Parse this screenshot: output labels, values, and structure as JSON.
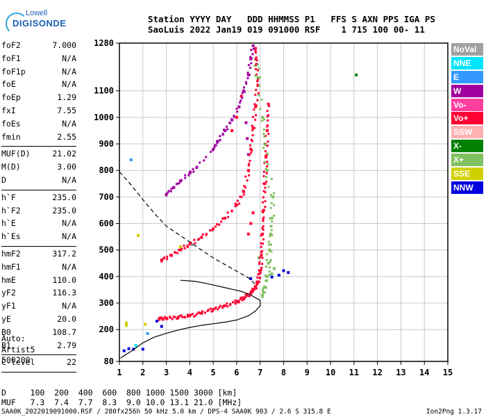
{
  "logo": {
    "sub": "Lowell",
    "main": "DIGISONDE"
  },
  "header": {
    "line1": "Station YYYY DAY   DDD HHMMSS P1   FFS S AXN PPS IGA PS",
    "line2": "SaoLuis 2022 Jan19 019 091000 RSF    1 715 100 00- 11"
  },
  "params": {
    "group1": [
      {
        "label": "foF2",
        "value": "7.000"
      },
      {
        "label": "foF1",
        "value": "N/A"
      },
      {
        "label": "foF1p",
        "value": "N/A"
      },
      {
        "label": "foE",
        "value": "N/A"
      },
      {
        "label": "foEp",
        "value": "1.29"
      },
      {
        "label": "fxI",
        "value": "7.55"
      },
      {
        "label": "foEs",
        "value": "N/A"
      },
      {
        "label": "fmin",
        "value": "2.55"
      }
    ],
    "group2": [
      {
        "label": "MUF(D)",
        "value": "21.02"
      },
      {
        "label": "M(D)",
        "value": "3.00"
      },
      {
        "label": "D",
        "value": "N/A"
      }
    ],
    "group3": [
      {
        "label": "h`F",
        "value": "235.0"
      },
      {
        "label": "h`F2",
        "value": "235.0"
      },
      {
        "label": "h`E",
        "value": "N/A"
      },
      {
        "label": "h`Es",
        "value": "N/A"
      }
    ],
    "group4": [
      {
        "label": "hmF2",
        "value": "317.2"
      },
      {
        "label": "hmF1",
        "value": "N/A"
      },
      {
        "label": "hmE",
        "value": "110.0"
      },
      {
        "label": "yF2",
        "value": "116.3"
      },
      {
        "label": "yF1",
        "value": "N/A"
      },
      {
        "label": "yE",
        "value": "20.0"
      },
      {
        "label": "B0",
        "value": "108.7"
      },
      {
        "label": "B1",
        "value": "2.79"
      }
    ],
    "group5": [
      {
        "label": "C-level",
        "value": "22"
      }
    ]
  },
  "auto": {
    "line1": "Auto:",
    "line2": "Artist5",
    "line3": "500200"
  },
  "legend": [
    {
      "label": "NoVal",
      "color": "#a0a0a0"
    },
    {
      "label": "NNE",
      "color": "#00e5ff"
    },
    {
      "label": "E",
      "color": "#3399ff"
    },
    {
      "label": "W",
      "color": "#a000a0"
    },
    {
      "label": "Vo-",
      "color": "#ff3fa0"
    },
    {
      "label": "Vo+",
      "color": "#ff0033"
    },
    {
      "label": "SSW",
      "color": "#ffb0b0"
    },
    {
      "label": "X-",
      "color": "#008000"
    },
    {
      "label": "X+",
      "color": "#80c060"
    },
    {
      "label": "SSE",
      "color": "#d0d000"
    },
    {
      "label": "NNW",
      "color": "#0000dd"
    }
  ],
  "bottom": {
    "line1": "D     100  200  400  600  800 1000 1500 3000 [km]",
    "line2": "MUF   7.3  7.4  7.7  8.3  9.0 10.0 13.1 21.0 [MHz]"
  },
  "footer": {
    "left": "SAA0K_2022019091000.RSF / 280fx256h 50 kHz 5.0 km / DPS-4 SAA0K 903 / 2.6 S 315.8 E",
    "right": "Ion2Png 1.3.17"
  },
  "chart_data": {
    "type": "scatter",
    "x_label": "",
    "y_label": "",
    "xlim": [
      1,
      15
    ],
    "ylim": [
      80,
      1280
    ],
    "x_ticks": [
      1,
      2,
      3,
      4,
      5,
      6,
      7,
      8,
      9,
      10,
      11,
      12,
      13,
      14,
      15
    ],
    "y_ticks": [
      80,
      200,
      300,
      400,
      500,
      600,
      700,
      800,
      900,
      1000,
      1100,
      1280
    ],
    "y_tick_labels": [
      "80",
      "200",
      "300",
      "400",
      "500",
      "600",
      "700",
      "800",
      "900",
      "1000",
      "1100",
      "1280"
    ],
    "grid": true,
    "series": [
      {
        "name": "Vo+",
        "color": "#ff0033",
        "points": [
          [
            2.7,
            242
          ],
          [
            3.0,
            243
          ],
          [
            3.5,
            246
          ],
          [
            4.0,
            252
          ],
          [
            4.5,
            262
          ],
          [
            5.0,
            276
          ],
          [
            5.5,
            290
          ],
          [
            6.0,
            305
          ],
          [
            6.3,
            318
          ],
          [
            6.6,
            338
          ],
          [
            6.8,
            360
          ],
          [
            6.9,
            380
          ],
          [
            7.0,
            420
          ],
          [
            7.05,
            480
          ],
          [
            7.1,
            560
          ],
          [
            7.15,
            650
          ],
          [
            7.2,
            750
          ],
          [
            7.25,
            850
          ],
          [
            7.3,
            950
          ],
          [
            7.35,
            1050
          ],
          [
            2.8,
            462
          ],
          [
            3.2,
            480
          ],
          [
            3.6,
            500
          ],
          [
            4.0,
            522
          ],
          [
            4.5,
            548
          ],
          [
            5.0,
            580
          ],
          [
            5.5,
            620
          ],
          [
            6.0,
            670
          ],
          [
            6.3,
            720
          ],
          [
            6.5,
            800
          ],
          [
            6.6,
            880
          ],
          [
            6.7,
            960
          ],
          [
            6.8,
            1040
          ],
          [
            6.9,
            1120
          ],
          [
            6.85,
            1200
          ],
          [
            6.8,
            1260
          ],
          [
            6.2,
            1080
          ],
          [
            6.0,
            1000
          ],
          [
            5.8,
            950
          ],
          [
            6.5,
            560
          ],
          [
            6.6,
            600
          ],
          [
            6.7,
            640
          ]
        ]
      },
      {
        "name": "X+",
        "color": "#80c060",
        "points": [
          [
            7.1,
            330
          ],
          [
            7.2,
            360
          ],
          [
            7.3,
            400
          ],
          [
            7.35,
            450
          ],
          [
            7.4,
            500
          ],
          [
            7.45,
            560
          ],
          [
            7.5,
            620
          ],
          [
            7.55,
            700
          ],
          [
            7.3,
            800
          ],
          [
            7.2,
            900
          ],
          [
            7.1,
            1000
          ],
          [
            6.9,
            1150
          ],
          [
            6.8,
            1220
          ],
          [
            6.95,
            470
          ],
          [
            7.5,
            410
          ],
          [
            7.6,
            430
          ]
        ]
      },
      {
        "name": "W",
        "color": "#a000a0",
        "points": [
          [
            3.0,
            710
          ],
          [
            3.3,
            735
          ],
          [
            3.6,
            760
          ],
          [
            4.0,
            790
          ],
          [
            4.3,
            812
          ],
          [
            5.0,
            880
          ],
          [
            5.2,
            910
          ],
          [
            5.5,
            950
          ],
          [
            5.8,
            990
          ],
          [
            6.1,
            1040
          ],
          [
            6.3,
            1100
          ],
          [
            6.5,
            1160
          ],
          [
            6.6,
            1220
          ],
          [
            6.7,
            1270
          ],
          [
            6.5,
            860
          ],
          [
            6.45,
            920
          ],
          [
            6.4,
            980
          ]
        ]
      },
      {
        "name": "NNW",
        "color": "#0000dd",
        "points": [
          [
            1.2,
            120
          ],
          [
            1.4,
            128
          ],
          [
            1.6,
            126
          ],
          [
            2.0,
            126
          ],
          [
            2.8,
            212
          ],
          [
            2.6,
            232
          ],
          [
            7.8,
            405
          ],
          [
            8.0,
            422
          ],
          [
            8.2,
            415
          ],
          [
            7.5,
            398
          ],
          [
            6.6,
            392
          ]
        ]
      },
      {
        "name": "E",
        "color": "#3399ff",
        "points": [
          [
            1.5,
            840
          ],
          [
            2.2,
            185
          ]
        ]
      },
      {
        "name": "NNE",
        "color": "#00e5ff",
        "points": [
          [
            1.7,
            140
          ]
        ]
      },
      {
        "name": "X-",
        "color": "#008000",
        "points": [
          [
            11.1,
            1160
          ]
        ]
      },
      {
        "name": "SSE",
        "color": "#d0d000",
        "points": [
          [
            1.3,
            215
          ],
          [
            1.3,
            225
          ],
          [
            2.1,
            220
          ],
          [
            3.6,
            512
          ],
          [
            1.8,
            555
          ]
        ]
      },
      {
        "name": "NoVal",
        "color": "#a0a0a0",
        "points": [
          [
            6.4,
            330
          ],
          [
            4.1,
            520
          ]
        ]
      }
    ],
    "profile_line": [
      [
        1.05,
        92
      ],
      [
        1.2,
        102
      ],
      [
        1.5,
        118
      ],
      [
        2.0,
        150
      ],
      [
        2.5,
        172
      ],
      [
        3.0,
        186
      ],
      [
        3.5,
        198
      ],
      [
        4.0,
        208
      ],
      [
        4.5,
        216
      ],
      [
        5.0,
        222
      ],
      [
        5.5,
        228
      ],
      [
        6.0,
        236
      ],
      [
        6.5,
        252
      ],
      [
        6.8,
        270
      ],
      [
        7.0,
        290
      ],
      [
        7.0,
        310
      ],
      [
        6.6,
        330
      ],
      [
        6.2,
        344
      ],
      [
        5.8,
        352
      ],
      [
        5.4,
        360
      ],
      [
        5.0,
        368
      ],
      [
        4.6,
        376
      ],
      [
        4.2,
        382
      ],
      [
        3.6,
        386
      ]
    ],
    "dashed_line": [
      [
        1.0,
        795
      ],
      [
        1.5,
        745
      ],
      [
        2.0,
        690
      ],
      [
        2.5,
        637
      ],
      [
        3.0,
        590
      ],
      [
        3.5,
        560
      ],
      [
        4.0,
        530
      ],
      [
        4.5,
        500
      ],
      [
        5.0,
        470
      ],
      [
        5.5,
        445
      ],
      [
        6.0,
        420
      ],
      [
        6.5,
        395
      ],
      [
        6.8,
        370
      ]
    ]
  }
}
